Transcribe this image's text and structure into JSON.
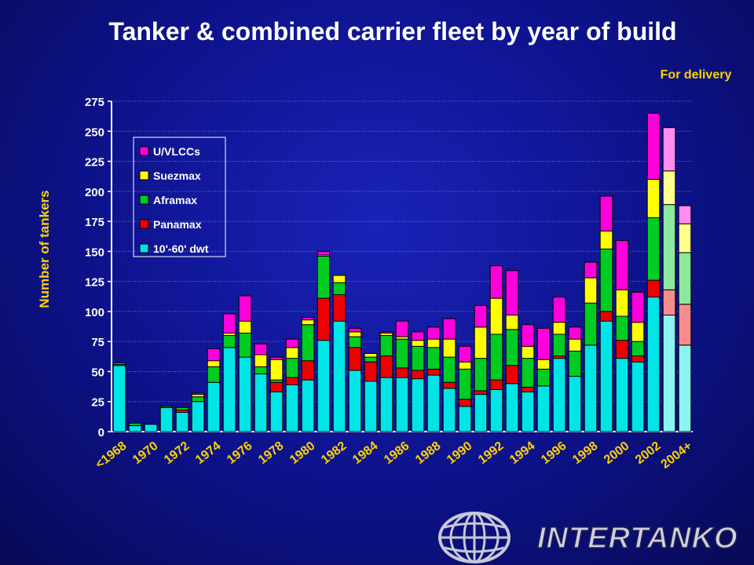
{
  "chart_data": {
    "type": "bar",
    "stacked": true,
    "title": "Tanker & combined carrier fleet by year of build",
    "annotation": "For delivery",
    "xlabel": "",
    "ylabel": "Number of tankers",
    "ylim": [
      0,
      275
    ],
    "yticks": [
      0,
      25,
      50,
      75,
      100,
      125,
      150,
      175,
      200,
      225,
      250,
      275
    ],
    "grid": true,
    "legend_position": "top-left",
    "categories": [
      "<1968",
      "1969",
      "1970",
      "1971",
      "1972",
      "1973",
      "1974",
      "1975",
      "1976",
      "1977",
      "1978",
      "1979",
      "1980",
      "1981",
      "1982",
      "1983",
      "1984",
      "1985",
      "1986",
      "1987",
      "1988",
      "1989",
      "1990",
      "1991",
      "1992",
      "1993",
      "1994",
      "1995",
      "1996",
      "1997",
      "1998",
      "1999",
      "2000",
      "2001",
      "2002",
      "2003",
      "2004+"
    ],
    "x_tick_labels": [
      "<1968",
      "1970",
      "1972",
      "1974",
      "1976",
      "1978",
      "1980",
      "1982",
      "1984",
      "1986",
      "1988",
      "1990",
      "1992",
      "1994",
      "1996",
      "1998",
      "2000",
      "2002",
      "2004+"
    ],
    "delivery_categories": [
      "2003",
      "2004+"
    ],
    "series": [
      {
        "name": "10'-60' dwt",
        "color": "#00e5e5",
        "values": [
          55,
          5,
          6,
          20,
          16,
          25,
          41,
          70,
          62,
          48,
          33,
          39,
          43,
          76,
          92,
          51,
          42,
          45,
          45,
          44,
          47,
          36,
          21,
          31,
          35,
          40,
          33,
          38,
          61,
          46,
          72,
          92,
          61,
          58,
          112,
          97,
          72
        ]
      },
      {
        "name": "Panamax",
        "color": "#ee0000",
        "values": [
          0,
          0,
          0,
          0,
          2,
          0,
          0,
          0,
          0,
          0,
          8,
          6,
          16,
          35,
          22,
          19,
          16,
          18,
          8,
          7,
          5,
          5,
          6,
          3,
          8,
          15,
          4,
          0,
          2,
          0,
          0,
          8,
          15,
          5,
          14,
          21,
          34
        ]
      },
      {
        "name": "Aframax",
        "color": "#00cc22",
        "values": [
          1,
          2,
          0,
          1,
          2,
          4,
          13,
          10,
          20,
          6,
          2,
          16,
          30,
          35,
          10,
          9,
          4,
          17,
          24,
          20,
          18,
          21,
          25,
          27,
          38,
          30,
          24,
          14,
          18,
          21,
          35,
          52,
          20,
          12,
          52,
          71,
          43
        ]
      },
      {
        "name": "Suezmax",
        "color": "#ffff00",
        "values": [
          1,
          0,
          0,
          0,
          0,
          2,
          5,
          2,
          10,
          10,
          17,
          9,
          4,
          1,
          6,
          4,
          3,
          2,
          2,
          5,
          7,
          15,
          6,
          26,
          30,
          12,
          10,
          8,
          10,
          10,
          21,
          15,
          22,
          16,
          32,
          28,
          24
        ]
      },
      {
        "name": "U/VLCCs",
        "color": "#ff00dd",
        "values": [
          0,
          0,
          0,
          0,
          0,
          1,
          10,
          16,
          21,
          9,
          2,
          7,
          2,
          3,
          0,
          3,
          0,
          1,
          13,
          7,
          10,
          17,
          13,
          18,
          27,
          37,
          18,
          26,
          21,
          10,
          13,
          29,
          41,
          25,
          55,
          36,
          15
        ]
      }
    ]
  },
  "logo": {
    "text": "INTERTANKO"
  }
}
